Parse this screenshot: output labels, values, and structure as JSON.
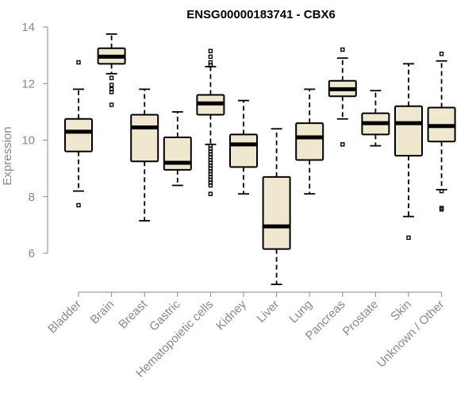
{
  "chart_data": {
    "type": "box",
    "title": "ENSG00000183741 - CBX6",
    "ylabel": "Expression",
    "xlabel": "",
    "ylim": [
      4.6,
      14.2
    ],
    "yticks": [
      6,
      8,
      10,
      12,
      14
    ],
    "colors": {
      "box_fill": "#efe8cf",
      "box_stroke": "#000000",
      "axis": "#888888"
    },
    "categories": [
      "Bladder",
      "Brain",
      "Breast",
      "Gastric",
      "Hematopoietic cells",
      "Kidney",
      "Liver",
      "Lung",
      "Pancreas",
      "Prostate",
      "Skin",
      "Unknown / Other"
    ],
    "boxes": [
      {
        "label": "Bladder",
        "whisker_low": 8.2,
        "q1": 9.6,
        "median": 10.3,
        "q3": 10.75,
        "whisker_high": 11.8,
        "outliers": [
          12.75,
          7.7
        ]
      },
      {
        "label": "Brain",
        "whisker_low": 12.35,
        "q1": 12.7,
        "median": 12.95,
        "q3": 13.25,
        "whisker_high": 13.75,
        "outliers": [
          12.2,
          11.95,
          11.8,
          11.7,
          11.25
        ]
      },
      {
        "label": "Breast",
        "whisker_low": 7.15,
        "q1": 9.25,
        "median": 10.45,
        "q3": 10.9,
        "whisker_high": 11.8,
        "outliers": []
      },
      {
        "label": "Gastric",
        "whisker_low": 8.4,
        "q1": 8.95,
        "median": 9.2,
        "q3": 10.1,
        "whisker_high": 11.0,
        "outliers": []
      },
      {
        "label": "Hematopoietic cells",
        "whisker_low": 9.85,
        "q1": 10.9,
        "median": 11.3,
        "q3": 11.6,
        "whisker_high": 12.6,
        "outliers": [
          13.15,
          12.95,
          12.75,
          12.65,
          9.8,
          9.7,
          9.6,
          9.5,
          9.4,
          9.3,
          9.2,
          9.1,
          9.0,
          8.9,
          8.8,
          8.7,
          8.6,
          8.5,
          8.4,
          8.1
        ]
      },
      {
        "label": "Kidney",
        "whisker_low": 8.1,
        "q1": 9.05,
        "median": 9.85,
        "q3": 10.2,
        "whisker_high": 11.4,
        "outliers": []
      },
      {
        "label": "Liver",
        "whisker_low": 4.9,
        "q1": 6.15,
        "median": 6.95,
        "q3": 8.7,
        "whisker_high": 10.4,
        "outliers": []
      },
      {
        "label": "Lung",
        "whisker_low": 8.1,
        "q1": 9.3,
        "median": 10.1,
        "q3": 10.6,
        "whisker_high": 11.8,
        "outliers": []
      },
      {
        "label": "Pancreas",
        "whisker_low": 10.75,
        "q1": 11.55,
        "median": 11.8,
        "q3": 12.1,
        "whisker_high": 12.9,
        "outliers": [
          13.2,
          9.85
        ]
      },
      {
        "label": "Prostate",
        "whisker_low": 9.8,
        "q1": 10.2,
        "median": 10.6,
        "q3": 10.95,
        "whisker_high": 11.75,
        "outliers": []
      },
      {
        "label": "Skin",
        "whisker_low": 7.3,
        "q1": 9.45,
        "median": 10.6,
        "q3": 11.2,
        "whisker_high": 12.7,
        "outliers": [
          6.55
        ]
      },
      {
        "label": "Unknown / Other",
        "whisker_low": 8.25,
        "q1": 9.95,
        "median": 10.5,
        "q3": 11.15,
        "whisker_high": 12.8,
        "outliers": [
          13.05,
          8.2,
          7.6,
          7.55
        ]
      }
    ]
  }
}
